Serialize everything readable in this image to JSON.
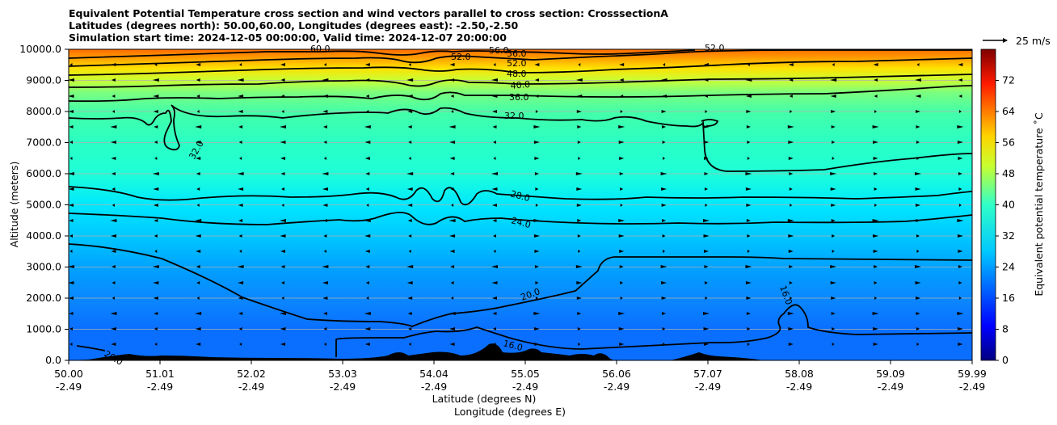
{
  "title_lines": [
    "Equivalent Potential Temperature cross section and wind vectors parallel to cross section: CrosssectionA",
    "Latitudes (degrees north): 50.00,60.00, Longitudes (degrees east): -2.50,-2.50",
    "Simulation start time: 2024-12-05 00:00:00, Valid time: 2024-12-07 20:00:00"
  ],
  "chart_data": {
    "type": "heatmap",
    "ylabel": "Altitude (meters)",
    "xlabel_lat": "Latitude (degrees N)",
    "xlabel_lon": "Longitude (degrees E)",
    "ylim": [
      0,
      10000
    ],
    "y_ticks": [
      "0.0",
      "1000.0",
      "2000.0",
      "3000.0",
      "4000.0",
      "5000.0",
      "6000.0",
      "7000.0",
      "8000.0",
      "9000.0",
      "10000.0"
    ],
    "x_ticks_lat": [
      "50.00",
      "51.01",
      "52.02",
      "53.03",
      "54.04",
      "55.05",
      "56.06",
      "57.07",
      "58.08",
      "59.09",
      "59.99"
    ],
    "x_ticks_lon": [
      "-2.49",
      "-2.49",
      "-2.49",
      "-2.49",
      "-2.49",
      "-2.49",
      "-2.49",
      "-2.49",
      "-2.49",
      "-2.49",
      "-2.49"
    ],
    "grid": "horizontal",
    "colorbar": {
      "label": "Equivalent potential temperature ˚C",
      "range": [
        0,
        80
      ],
      "ticks": [
        "0",
        "8",
        "16",
        "24",
        "32",
        "40",
        "48",
        "56",
        "64",
        "72"
      ],
      "colormap": "jet"
    },
    "contour_labels": [
      "20.0",
      "16.0",
      "20.0",
      "16.0",
      "24.0",
      "28.0",
      "32.0",
      "32.0",
      "36.0",
      "40.0",
      "48.0",
      "52.0",
      "52.0",
      "56.0",
      "56.0",
      "52.0",
      "60.0"
    ],
    "wind_key": "25 m/s",
    "colors": {
      "contour": "#000000",
      "terrain": "#000000",
      "grid": "#b0b0b0"
    }
  }
}
